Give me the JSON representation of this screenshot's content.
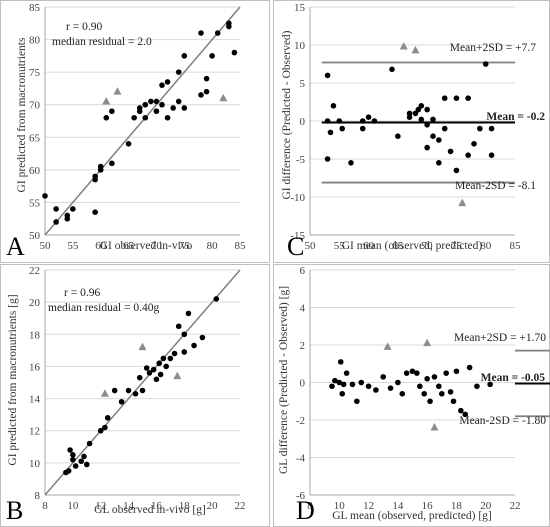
{
  "chart_data": [
    {
      "panel": "A",
      "type": "scatter",
      "xlabel": "GI observed in-vivo",
      "ylabel": "GI predicted from macronutrients",
      "xlim": [
        50,
        85
      ],
      "ylim": [
        50,
        85
      ],
      "xticks": [
        50,
        55,
        60,
        65,
        70,
        75,
        80,
        85
      ],
      "yticks": [
        50,
        55,
        60,
        65,
        70,
        75,
        80,
        85
      ],
      "annotations": [
        "r = 0.90",
        "median residual = 2.0"
      ],
      "identity_line": true,
      "circles": [
        [
          50,
          56
        ],
        [
          52,
          52
        ],
        [
          52,
          54
        ],
        [
          54,
          53
        ],
        [
          54,
          52.5
        ],
        [
          55,
          54
        ],
        [
          59,
          53.5
        ],
        [
          59,
          58.5
        ],
        [
          59,
          59
        ],
        [
          60,
          60
        ],
        [
          60,
          60.5
        ],
        [
          62,
          61
        ],
        [
          61,
          68
        ],
        [
          62,
          69
        ],
        [
          65,
          64
        ],
        [
          66,
          68
        ],
        [
          67,
          69
        ],
        [
          67,
          69.5
        ],
        [
          68,
          68
        ],
        [
          68,
          70
        ],
        [
          69,
          70.5
        ],
        [
          70,
          69
        ],
        [
          70,
          70.5
        ],
        [
          71,
          70
        ],
        [
          71,
          73
        ],
        [
          72,
          73.5
        ],
        [
          72,
          68
        ],
        [
          73,
          69.5
        ],
        [
          74,
          75
        ],
        [
          74,
          70.5
        ],
        [
          75,
          77.5
        ],
        [
          75,
          69.5
        ],
        [
          78,
          81
        ],
        [
          78,
          71.5
        ],
        [
          79,
          72
        ],
        [
          79,
          74
        ],
        [
          80,
          77.5
        ],
        [
          81,
          81
        ],
        [
          83,
          82
        ],
        [
          83,
          82.5
        ],
        [
          84,
          78
        ]
      ],
      "triangles": [
        [
          61,
          70.5
        ],
        [
          63,
          72
        ],
        [
          82,
          71
        ]
      ]
    },
    {
      "panel": "C",
      "type": "scatter",
      "xlabel": "GI mean (observed, predicted)",
      "ylabel": "GI difference (Predicted - Observed)",
      "xlim": [
        50,
        85
      ],
      "ylim": [
        -15,
        15
      ],
      "xticks": [
        50,
        55,
        60,
        65,
        70,
        75,
        80,
        85
      ],
      "yticks": [
        -15,
        -10,
        -5,
        0,
        5,
        10,
        15
      ],
      "mean": -0.2,
      "upper": 7.7,
      "lower": -8.1,
      "mean_label": "Mean = -0.2",
      "upper_label": "Mean+2SD = +7.7",
      "lower_label": "Mean-2SD = -8.1",
      "circles": [
        [
          53,
          6
        ],
        [
          53,
          0
        ],
        [
          53.5,
          -1.5
        ],
        [
          53,
          -5
        ],
        [
          54,
          2
        ],
        [
          55,
          0
        ],
        [
          55.5,
          -1
        ],
        [
          57,
          -5.5
        ],
        [
          59,
          0
        ],
        [
          59,
          -1
        ],
        [
          60,
          0.5
        ],
        [
          61,
          0
        ],
        [
          64,
          6.8
        ],
        [
          65,
          -2
        ],
        [
          67,
          1
        ],
        [
          67,
          0.5
        ],
        [
          68,
          1
        ],
        [
          68.5,
          1.5
        ],
        [
          69,
          2
        ],
        [
          69,
          0.2
        ],
        [
          70,
          1.5
        ],
        [
          70,
          -0.5
        ],
        [
          70,
          -3.5
        ],
        [
          71,
          0.2
        ],
        [
          71,
          -2
        ],
        [
          72,
          -2.5
        ],
        [
          72,
          -5.5
        ],
        [
          73,
          3
        ],
        [
          73,
          -1
        ],
        [
          74,
          -4
        ],
        [
          75,
          3
        ],
        [
          75,
          -6.5
        ],
        [
          77,
          3
        ],
        [
          77,
          -4.5
        ],
        [
          78,
          -3
        ],
        [
          79,
          -1
        ],
        [
          80,
          7.5
        ],
        [
          81,
          -1
        ],
        [
          81,
          -4.5
        ]
      ],
      "triangles": [
        [
          66,
          9.8
        ],
        [
          68,
          9.3
        ],
        [
          76,
          -10.8
        ]
      ]
    },
    {
      "panel": "B",
      "type": "scatter",
      "xlabel": "GL observed in-vivo [g]",
      "ylabel": "GI predicted from macronutrients [g]",
      "xlim": [
        8,
        22
      ],
      "ylim": [
        8,
        22
      ],
      "xticks": [
        8,
        10,
        12,
        14,
        16,
        18,
        20,
        22
      ],
      "yticks": [
        8,
        10,
        12,
        14,
        16,
        18,
        20,
        22
      ],
      "annotations": [
        "r = 0.96",
        "median residual = 0.40g"
      ],
      "identity_line": true,
      "circles": [
        [
          9.5,
          9.4
        ],
        [
          9.7,
          9.5
        ],
        [
          9.8,
          10.8
        ],
        [
          10,
          10.5
        ],
        [
          10,
          10.2
        ],
        [
          10.2,
          9.8
        ],
        [
          10.6,
          10.1
        ],
        [
          10.8,
          10.4
        ],
        [
          11,
          9.9
        ],
        [
          11.2,
          11.2
        ],
        [
          12,
          12
        ],
        [
          12.3,
          12.2
        ],
        [
          12.5,
          12.8
        ],
        [
          13,
          14.5
        ],
        [
          13.5,
          13.8
        ],
        [
          14,
          14.5
        ],
        [
          14.5,
          14.3
        ],
        [
          14.8,
          15.3
        ],
        [
          15,
          14.5
        ],
        [
          15.3,
          15.9
        ],
        [
          15.5,
          15.6
        ],
        [
          15.8,
          15.8
        ],
        [
          16,
          15.2
        ],
        [
          16.2,
          16.2
        ],
        [
          16.3,
          15.5
        ],
        [
          16.5,
          16.5
        ],
        [
          16.7,
          16
        ],
        [
          17,
          16.5
        ],
        [
          17.3,
          16.8
        ],
        [
          17.6,
          18.5
        ],
        [
          18,
          18
        ],
        [
          18,
          16.9
        ],
        [
          18.3,
          19.3
        ],
        [
          18.7,
          17.3
        ],
        [
          19.3,
          17.8
        ],
        [
          20.3,
          20.2
        ]
      ],
      "triangles": [
        [
          12.3,
          14.3
        ],
        [
          15,
          17.2
        ],
        [
          17.5,
          15.4
        ]
      ]
    },
    {
      "panel": "D",
      "type": "scatter",
      "xlabel": "GL mean (observed, predicted) [g]",
      "ylabel": "GL difference (Predicted - Observed) [g]",
      "xlim": [
        8,
        22
      ],
      "ylim": [
        -6,
        6
      ],
      "xticks": [
        8,
        10,
        12,
        14,
        16,
        18,
        20,
        22
      ],
      "yticks": [
        -6,
        -4,
        -2,
        0,
        2,
        4,
        6
      ],
      "mean": -0.05,
      "upper": 1.7,
      "lower": -1.8,
      "mean_label": "Mean = -0.05",
      "upper_label": "Mean+2SD = +1.70",
      "lower_label": "Mean-2SD = -1.80",
      "circles": [
        [
          9.5,
          -0.2
        ],
        [
          9.7,
          0.1
        ],
        [
          10,
          0
        ],
        [
          10.1,
          1.1
        ],
        [
          10.2,
          -0.6
        ],
        [
          10.3,
          -0.1
        ],
        [
          10.5,
          0.5
        ],
        [
          10.9,
          -0.1
        ],
        [
          11.2,
          -1.0
        ],
        [
          11.5,
          0
        ],
        [
          12,
          -0.2
        ],
        [
          12.5,
          -0.4
        ],
        [
          13,
          0.3
        ],
        [
          13.5,
          -0.3
        ],
        [
          14,
          0
        ],
        [
          14.3,
          -0.6
        ],
        [
          14.6,
          0.5
        ],
        [
          15,
          0.6
        ],
        [
          15.3,
          0.5
        ],
        [
          15.5,
          -0.2
        ],
        [
          15.8,
          -0.6
        ],
        [
          16,
          0.2
        ],
        [
          16.2,
          -1.0
        ],
        [
          16.5,
          0.3
        ],
        [
          16.8,
          -0.2
        ],
        [
          17,
          -0.6
        ],
        [
          17.3,
          0.5
        ],
        [
          17.6,
          -0.5
        ],
        [
          17.8,
          -1.0
        ],
        [
          18,
          0.6
        ],
        [
          18.3,
          -1.5
        ],
        [
          18.6,
          -1.7
        ],
        [
          18.9,
          0.8
        ],
        [
          19.4,
          -0.2
        ],
        [
          20.3,
          -0.1
        ]
      ],
      "triangles": [
        [
          13.3,
          1.9
        ],
        [
          16,
          2.1
        ],
        [
          16.5,
          -2.4
        ]
      ]
    }
  ]
}
